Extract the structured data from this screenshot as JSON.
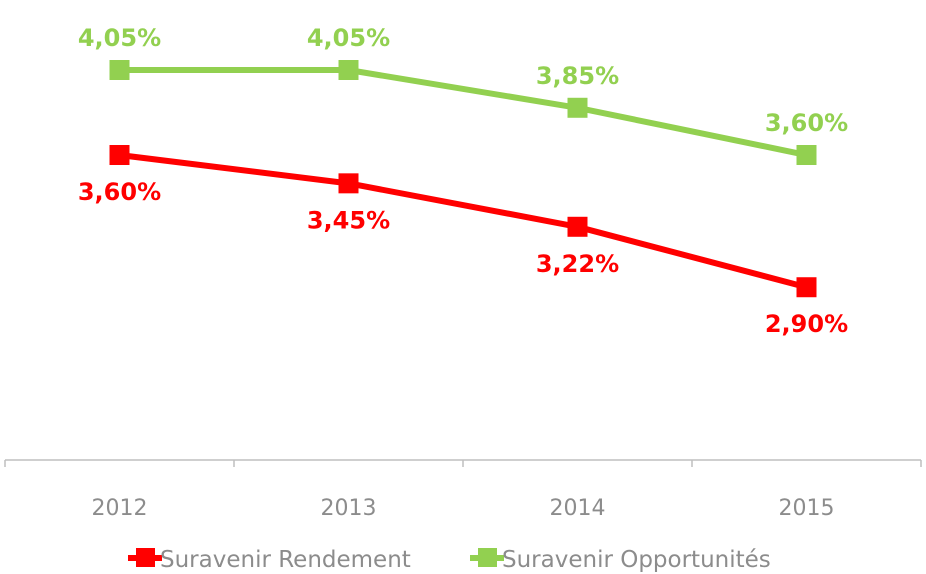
{
  "chart_data": {
    "type": "line",
    "title": "",
    "xlabel": "",
    "ylabel": "",
    "categories": [
      "2012",
      "2013",
      "2014",
      "2015"
    ],
    "series": [
      {
        "name": "Suravenir Rendement",
        "color": "#ff0000",
        "values": [
          3.6,
          3.45,
          3.22,
          2.9
        ],
        "labels": [
          "3,60%",
          "3,45%",
          "3,22%",
          "2,90%"
        ],
        "label_position": "below"
      },
      {
        "name": "Suravenir Opportunités",
        "color": "#92d050",
        "values": [
          4.05,
          4.05,
          3.85,
          3.6
        ],
        "labels": [
          "4,05%",
          "4,05%",
          "3,85%",
          "3,60%"
        ],
        "label_position": "above"
      }
    ],
    "ylim": [
      2.0,
      4.4
    ],
    "marker": "square",
    "grid": false,
    "legend": "bottom",
    "axis_color": "#bfbfbf"
  }
}
